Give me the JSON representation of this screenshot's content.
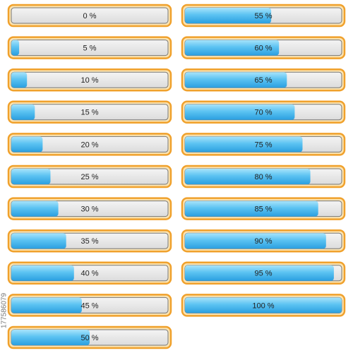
{
  "bars": [
    {
      "label": "0 %",
      "value": 0
    },
    {
      "label": "5 %",
      "value": 5
    },
    {
      "label": "10 %",
      "value": 10
    },
    {
      "label": "15 %",
      "value": 15
    },
    {
      "label": "20 %",
      "value": 20
    },
    {
      "label": "25 %",
      "value": 25
    },
    {
      "label": "30 %",
      "value": 30
    },
    {
      "label": "35 %",
      "value": 35
    },
    {
      "label": "40 %",
      "value": 40
    },
    {
      "label": "45 %",
      "value": 45
    },
    {
      "label": "50 %",
      "value": 50
    },
    {
      "label": "55 %",
      "value": 55
    },
    {
      "label": "60 %",
      "value": 60
    },
    {
      "label": "65 %",
      "value": 65
    },
    {
      "label": "70 %",
      "value": 70
    },
    {
      "label": "75 %",
      "value": 75
    },
    {
      "label": "80 %",
      "value": 80
    },
    {
      "label": "85 %",
      "value": 85
    },
    {
      "label": "90 %",
      "value": 90
    },
    {
      "label": "95 %",
      "value": 95
    },
    {
      "label": "100 %",
      "value": 100
    }
  ],
  "watermark": "177586079"
}
